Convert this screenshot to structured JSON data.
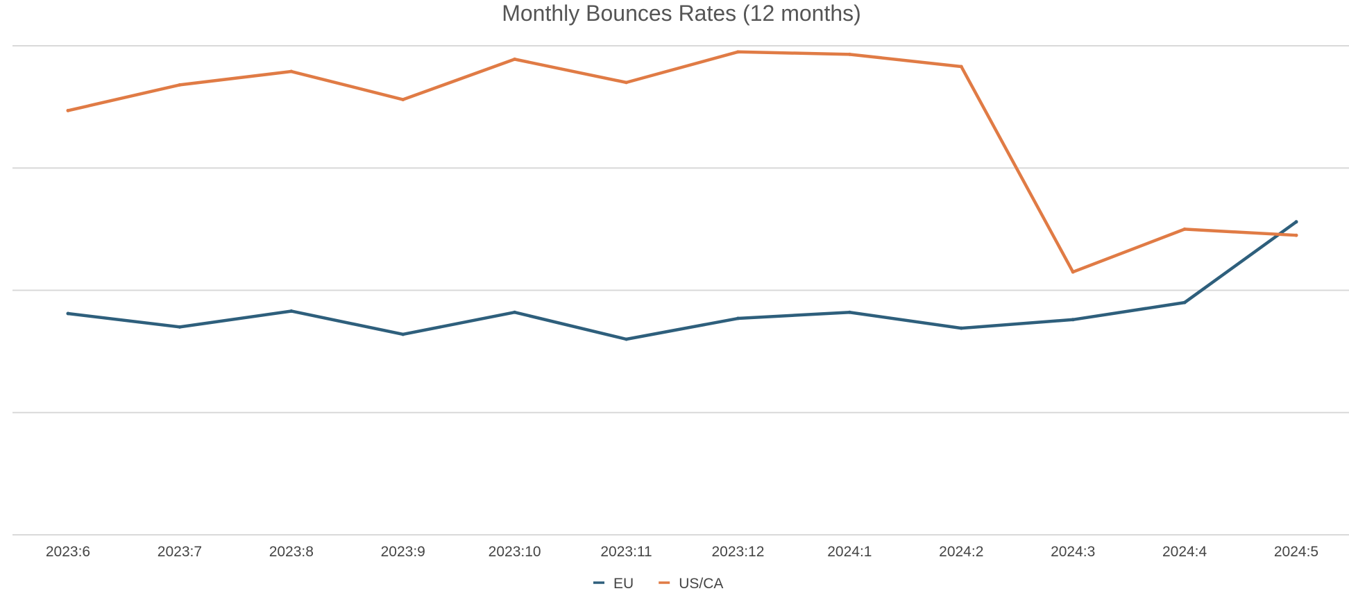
{
  "chart_data": {
    "type": "line",
    "title": "Monthly Bounces Rates (12 months)",
    "xlabel": "",
    "ylabel": "",
    "categories": [
      "2023:6",
      "2023:7",
      "2023:8",
      "2023:9",
      "2023:10",
      "2023:11",
      "2023:12",
      "2024:1",
      "2024:2",
      "2024:3",
      "2024:4",
      "2024:5"
    ],
    "ylim": [
      0,
      4
    ],
    "y_ticks_visible": false,
    "grid": true,
    "legend_position": "bottom-center",
    "series": [
      {
        "name": "EU",
        "color": "#2e5f7c",
        "values": [
          1.81,
          1.7,
          1.83,
          1.64,
          1.82,
          1.6,
          1.77,
          1.82,
          1.69,
          1.76,
          1.9,
          2.56
        ]
      },
      {
        "name": "US/CA",
        "color": "#e07b45",
        "values": [
          3.47,
          3.68,
          3.79,
          3.56,
          3.89,
          3.7,
          3.95,
          3.93,
          3.83,
          2.15,
          2.5,
          2.45
        ]
      }
    ]
  }
}
